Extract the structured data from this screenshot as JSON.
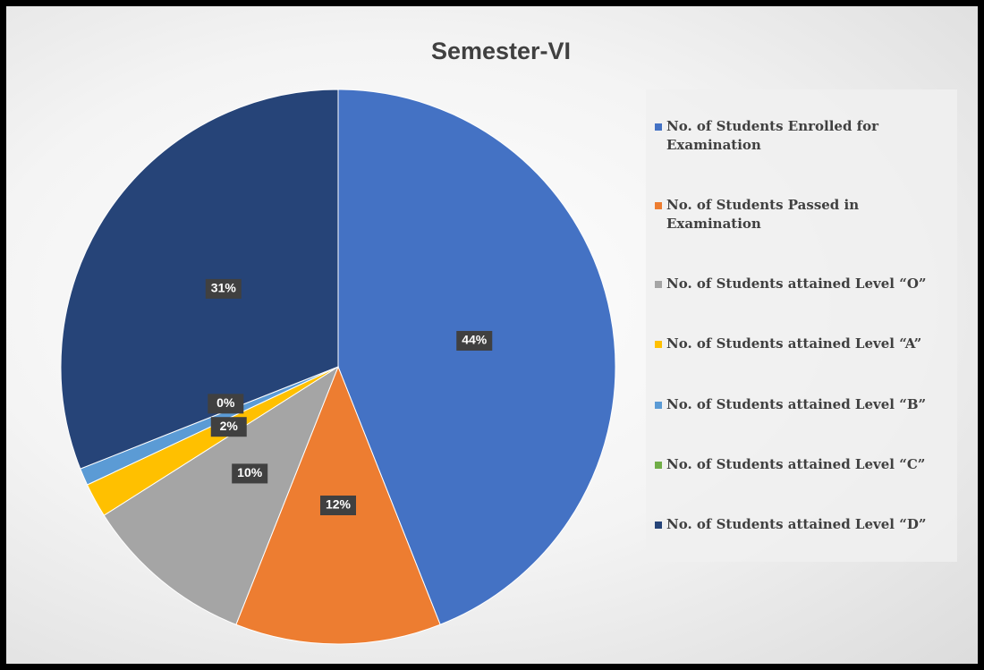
{
  "chart_data": {
    "type": "pie",
    "title": "Semester-VI",
    "categories": [
      "No. of Students Enrolled for Examination",
      "No. of Students Passed in Examination",
      "No. of Students attained Level “O”",
      "No. of Students attained Level “A”",
      "No. of Students attained Level “B”",
      "No. of Students attained Level “C”",
      "No. of Students attained Level “D”"
    ],
    "values": [
      44,
      12,
      10,
      2,
      1,
      0,
      31
    ],
    "value_labels": [
      "44%",
      "12%",
      "10%",
      "2%",
      null,
      "0%",
      "31%"
    ],
    "colors": [
      "#4472c4",
      "#ed7d31",
      "#a5a5a5",
      "#ffc000",
      "#5b9bd5",
      "#70ad47",
      "#264478"
    ],
    "legend": "right"
  }
}
